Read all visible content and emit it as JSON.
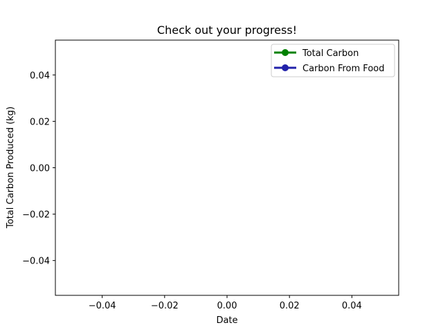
{
  "chart_data": {
    "type": "line",
    "title": "Check out your progress!",
    "xlabel": "Date",
    "ylabel": "Total Carbon Produced (kg)",
    "x": [],
    "series": [
      {
        "name": "Total Carbon",
        "values": [],
        "color": "#008000",
        "marker": "circle"
      },
      {
        "name": "Carbon From Food",
        "values": [],
        "color": "#2222aa",
        "marker": "circle"
      }
    ],
    "xlim": [
      -0.055,
      0.055
    ],
    "ylim": [
      -0.055,
      0.055
    ],
    "xticks": [
      -0.04,
      -0.02,
      0.0,
      0.02,
      0.04
    ],
    "xtick_labels": [
      "−0.04",
      "−0.02",
      "0.00",
      "0.02",
      "0.04"
    ],
    "yticks": [
      -0.04,
      -0.02,
      0.0,
      0.02,
      0.04
    ],
    "ytick_labels": [
      "−0.04",
      "−0.02",
      "0.00",
      "0.02",
      "0.04"
    ],
    "grid": false,
    "legend_position": "top-right"
  }
}
